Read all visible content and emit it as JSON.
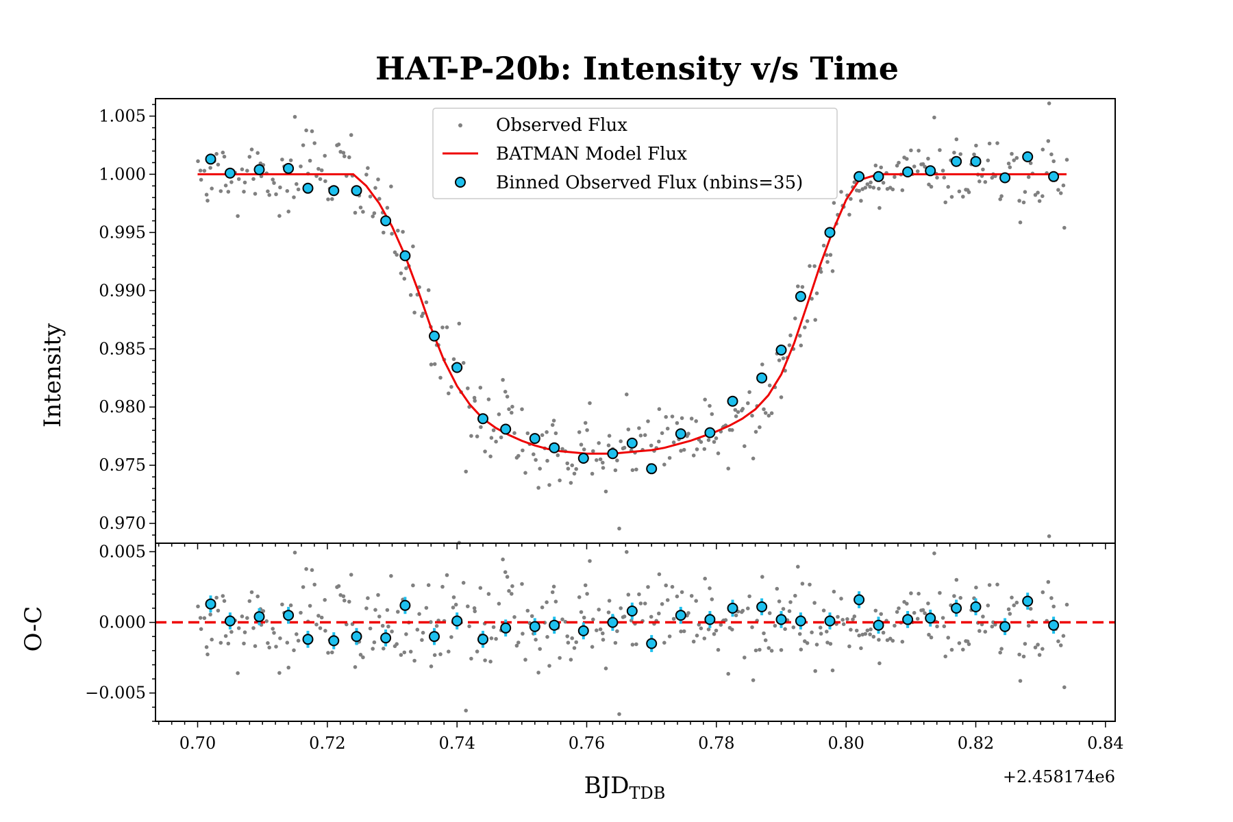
{
  "colors": {
    "observed": "#808080",
    "model": "#ee0000",
    "binned_fill": "#1ec0ee",
    "binned_edge": "#000000",
    "errorbar": "#1ec0ee",
    "zero_line": "#ee0000"
  },
  "chart_data": [
    {
      "panel": "top",
      "type": "scatter",
      "title": "HAT-P-20b: Intensity v/s Time",
      "ylabel": "Intensity",
      "xlim": [
        0.6935,
        0.8415
      ],
      "ylim": [
        0.9683,
        1.0065
      ],
      "yticks": [
        0.97,
        0.975,
        0.98,
        0.985,
        0.99,
        0.995,
        1.0,
        1.005
      ],
      "ytick_labels": [
        "0.970",
        "0.975",
        "0.980",
        "0.985",
        "0.990",
        "0.995",
        "1.000",
        "1.005"
      ],
      "legend_position": "top-center",
      "legend": [
        "Observed Flux",
        "BATMAN Model Flux",
        "Binned Observed Flux (nbins=35)"
      ],
      "model": {
        "name": "BATMAN Model Flux",
        "x": [
          0.7,
          0.705,
          0.71,
          0.715,
          0.72,
          0.724,
          0.726,
          0.728,
          0.73,
          0.732,
          0.734,
          0.736,
          0.738,
          0.74,
          0.742,
          0.744,
          0.746,
          0.748,
          0.75,
          0.752,
          0.754,
          0.756,
          0.758,
          0.76,
          0.762,
          0.764,
          0.766,
          0.768,
          0.77,
          0.772,
          0.774,
          0.776,
          0.778,
          0.78,
          0.782,
          0.784,
          0.786,
          0.788,
          0.79,
          0.792,
          0.794,
          0.796,
          0.798,
          0.8,
          0.802,
          0.805,
          0.81,
          0.815,
          0.82,
          0.825,
          0.83,
          0.834
        ],
        "y": [
          1.0,
          1.0,
          1.0,
          1.0,
          1.0,
          1.0,
          0.999,
          0.9975,
          0.9955,
          0.993,
          0.99,
          0.9868,
          0.984,
          0.9818,
          0.9802,
          0.979,
          0.9782,
          0.9776,
          0.9771,
          0.9767,
          0.9764,
          0.9762,
          0.9761,
          0.976,
          0.976,
          0.976,
          0.9761,
          0.9762,
          0.9763,
          0.9765,
          0.9768,
          0.9771,
          0.9775,
          0.9779,
          0.9784,
          0.979,
          0.9798,
          0.981,
          0.9828,
          0.9855,
          0.9888,
          0.9922,
          0.9952,
          0.9978,
          0.9995,
          1.0,
          1.0,
          1.0,
          1.0,
          1.0,
          1.0,
          1.0
        ]
      },
      "binned": {
        "name": "Binned Observed Flux (nbins=35)",
        "x": [
          0.702,
          0.705,
          0.7095,
          0.714,
          0.717,
          0.721,
          0.7245,
          0.729,
          0.732,
          0.7365,
          0.74,
          0.744,
          0.7475,
          0.752,
          0.755,
          0.7595,
          0.764,
          0.767,
          0.77,
          0.7745,
          0.779,
          0.7825,
          0.787,
          0.79,
          0.793,
          0.7975,
          0.802,
          0.805,
          0.8095,
          0.813,
          0.817,
          0.82,
          0.8245,
          0.828,
          0.832
        ],
        "y": [
          1.0013,
          1.0001,
          1.0004,
          1.0005,
          0.9988,
          0.9986,
          0.9986,
          0.996,
          0.993,
          0.9861,
          0.9834,
          0.979,
          0.9781,
          0.9773,
          0.9765,
          0.9756,
          0.976,
          0.9769,
          0.9747,
          0.9777,
          0.9778,
          0.9805,
          0.9825,
          0.9849,
          0.9895,
          0.995,
          0.9998,
          0.9998,
          1.0002,
          1.0003,
          1.0011,
          1.0011,
          0.9997,
          1.0015,
          0.9998
        ]
      }
    },
    {
      "panel": "bottom",
      "type": "scatter",
      "ylabel": "O-C",
      "xlabel": "BJD",
      "xlabel_subscript": "TDB",
      "offset_text": "+2.458174e6",
      "xlim": [
        0.6935,
        0.8415
      ],
      "ylim": [
        -0.007,
        0.0056
      ],
      "xticks": [
        0.7,
        0.72,
        0.74,
        0.76,
        0.78,
        0.8,
        0.82,
        0.84
      ],
      "xtick_labels": [
        "0.70",
        "0.72",
        "0.74",
        "0.76",
        "0.78",
        "0.80",
        "0.82",
        "0.84"
      ],
      "yticks": [
        -0.005,
        0.0,
        0.005
      ],
      "ytick_labels": [
        "−0.005",
        "0.000",
        "0.005"
      ],
      "zero_line": 0.0,
      "residuals": {
        "x": [
          0.702,
          0.705,
          0.7095,
          0.714,
          0.717,
          0.721,
          0.7245,
          0.729,
          0.732,
          0.7365,
          0.74,
          0.744,
          0.7475,
          0.752,
          0.755,
          0.7595,
          0.764,
          0.767,
          0.77,
          0.7745,
          0.779,
          0.7825,
          0.787,
          0.79,
          0.793,
          0.7975,
          0.802,
          0.805,
          0.8095,
          0.813,
          0.817,
          0.82,
          0.8245,
          0.828,
          0.832
        ],
        "y": [
          0.0013,
          0.0001,
          0.0004,
          0.0005,
          -0.0012,
          -0.0013,
          -0.001,
          -0.0011,
          0.0012,
          -0.001,
          0.0001,
          -0.0012,
          -0.0004,
          -0.0003,
          -0.0002,
          -0.0006,
          0.0,
          0.0008,
          -0.0015,
          0.0005,
          0.0002,
          0.001,
          0.0011,
          0.0002,
          0.0001,
          0.0001,
          0.0016,
          -0.0002,
          0.0002,
          0.0003,
          0.001,
          0.0011,
          -0.0003,
          0.0015,
          -0.0002
        ],
        "yerr": [
          0.0006,
          0.0006,
          0.0006,
          0.0006,
          0.0006,
          0.0006,
          0.0006,
          0.0006,
          0.0006,
          0.0006,
          0.0006,
          0.0006,
          0.0006,
          0.0006,
          0.0006,
          0.0006,
          0.0006,
          0.0006,
          0.0006,
          0.0006,
          0.0006,
          0.0006,
          0.0006,
          0.0006,
          0.0006,
          0.0006,
          0.0006,
          0.0006,
          0.0006,
          0.0006,
          0.0006,
          0.0006,
          0.0006,
          0.0006,
          0.0006
        ]
      }
    }
  ]
}
